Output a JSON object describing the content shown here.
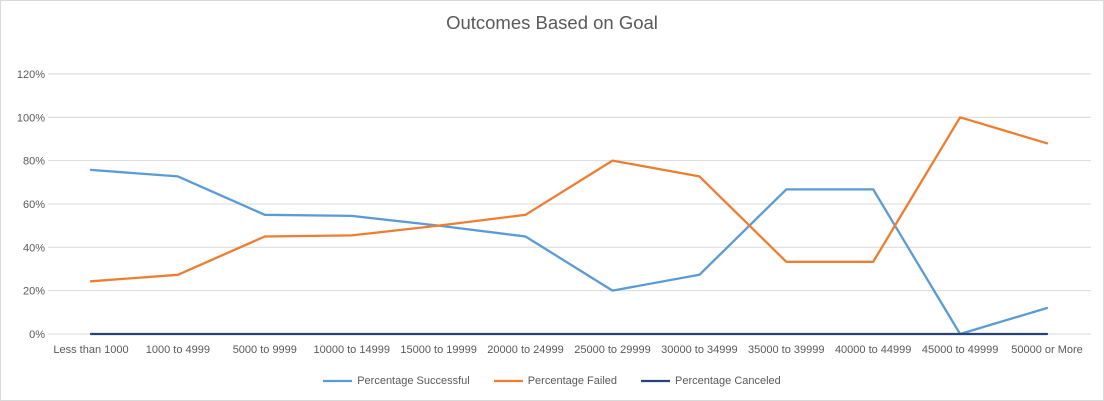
{
  "chart_data": {
    "type": "line",
    "title": "Outcomes Based on Goal",
    "categories": [
      "Less than 1000",
      "1000 to 4999",
      "5000 to 9999",
      "10000 to 14999",
      "15000 to 19999",
      "20000 to 24999",
      "25000 to 29999",
      "30000 to 34999",
      "35000 to 39999",
      "40000 to 44999",
      "45000 to 49999",
      "50000 or More"
    ],
    "series": [
      {
        "name": "Percentage Successful",
        "color": "#5B9BD5",
        "values": [
          75.7,
          72.7,
          55,
          54.5,
          50,
          45,
          20,
          27.3,
          66.7,
          66.7,
          0,
          12
        ]
      },
      {
        "name": "Percentage Failed",
        "color": "#ED7D31",
        "values": [
          24.3,
          27.3,
          45,
          45.5,
          50,
          55,
          80,
          72.7,
          33.3,
          33.3,
          100,
          88
        ]
      },
      {
        "name": "Percentage Canceled",
        "color": "#264478",
        "values": [
          0,
          0,
          0,
          0,
          0,
          0,
          0,
          0,
          0,
          0,
          0,
          0
        ]
      }
    ],
    "xlabel": "",
    "ylabel": "",
    "y_axis": {
      "min": 0,
      "max": 120,
      "step": 20,
      "ticks": [
        "0%",
        "20%",
        "40%",
        "60%",
        "80%",
        "100%",
        "120%"
      ]
    },
    "legend": {
      "position": "bottom",
      "entries": [
        "Percentage Successful",
        "Percentage Failed",
        "Percentage Canceled"
      ]
    },
    "grid": "horizontal",
    "style": {
      "gridline_color": "#D9D9D9",
      "border_color": "#D9D9D9",
      "text_color": "#595959",
      "background": "#FFFFFF",
      "line_width": 2.3
    }
  }
}
